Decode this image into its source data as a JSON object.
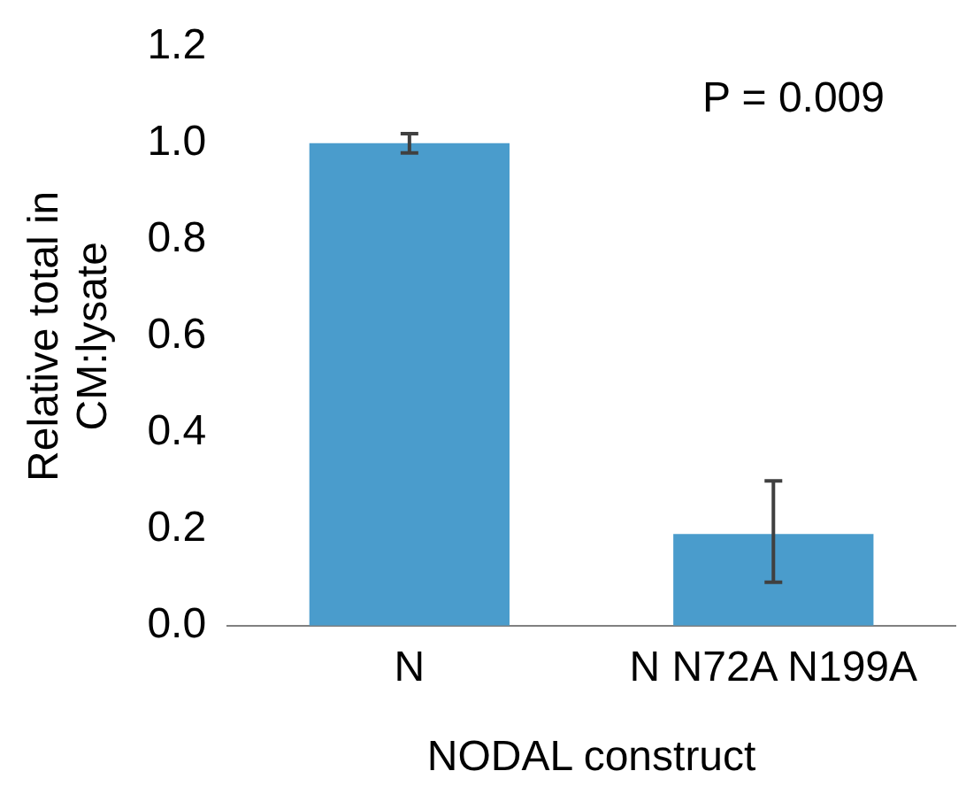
{
  "chart_data": {
    "type": "bar",
    "categories": [
      "N",
      "N N72A N199A"
    ],
    "values": [
      1.0,
      0.19
    ],
    "errors": [
      0.02,
      [
        0.09,
        0.3
      ]
    ],
    "color": "#4a9ccc",
    "ylabel": "Relative total in CM:lysate",
    "xlabel": "NODAL construct",
    "annotations": [
      "P = 0.009"
    ],
    "ylim": [
      0,
      1.2
    ],
    "yticks": [
      {
        "value": 0,
        "label": "0.0"
      },
      {
        "value": 0.2,
        "label": "0.2"
      },
      {
        "value": 0.4,
        "label": "0.4"
      },
      {
        "value": 0.6,
        "label": "0.6"
      },
      {
        "value": 0.8,
        "label": "0.8"
      },
      {
        "value": 1,
        "label": "1.0"
      },
      {
        "value": 1.2,
        "label": "1.2"
      }
    ],
    "grid": false,
    "legend": false
  }
}
